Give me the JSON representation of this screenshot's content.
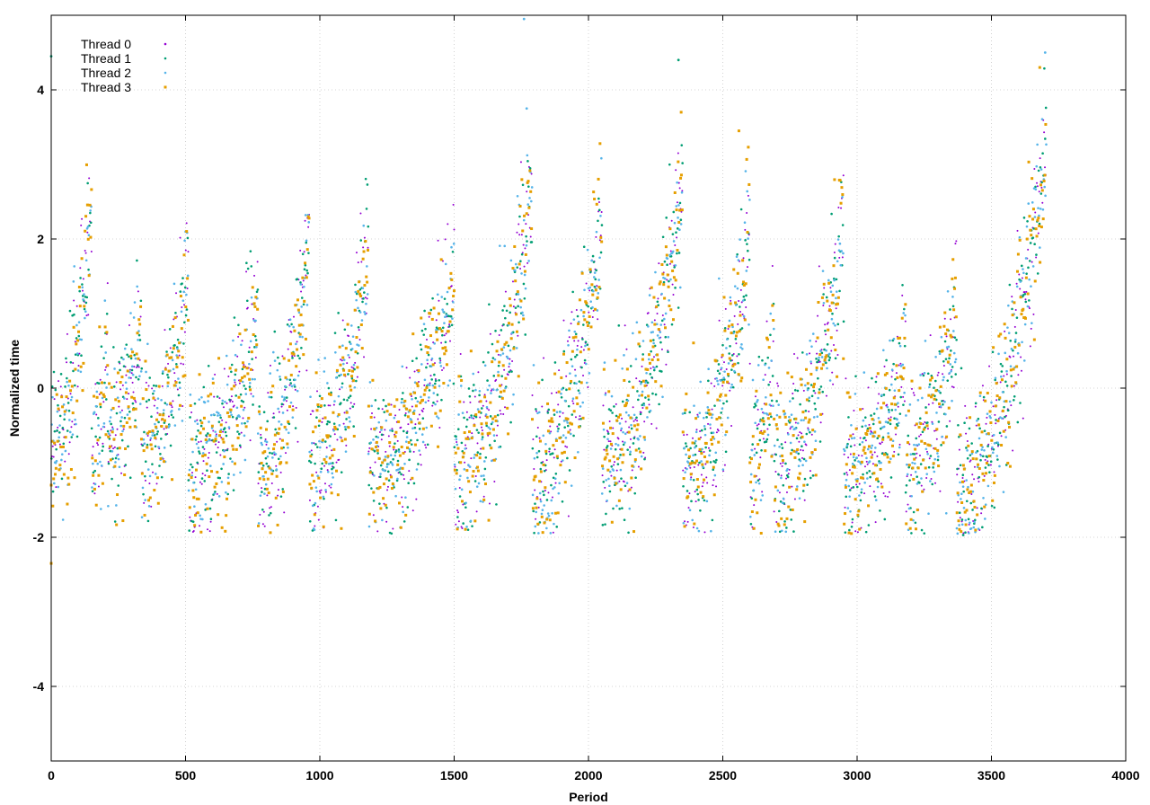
{
  "chart_data": {
    "type": "scatter",
    "title": "",
    "xlabel": "Period",
    "ylabel": "Normalized time",
    "xlim": [
      0,
      4000
    ],
    "ylim": [
      -5,
      5
    ],
    "xticks": [
      0,
      500,
      1000,
      1500,
      2000,
      2500,
      3000,
      3500,
      4000
    ],
    "yticks": [
      -4,
      -2,
      0,
      2,
      4
    ],
    "grid": true,
    "legend_position": "top-left",
    "point_count_per_series": 3705,
    "cycles": [
      {
        "start": 0,
        "end": 150,
        "low": -1.3,
        "peak": 3.2
      },
      {
        "start": 150,
        "end": 210,
        "low": -1.4,
        "peak": 1.5
      },
      {
        "start": 210,
        "end": 335,
        "low": -1.3,
        "peak": 1.6
      },
      {
        "start": 335,
        "end": 510,
        "low": -1.4,
        "peak": 2.4
      },
      {
        "start": 510,
        "end": 770,
        "low": -1.6,
        "peak": 1.8
      },
      {
        "start": 770,
        "end": 960,
        "low": -1.7,
        "peak": 2.8
      },
      {
        "start": 960,
        "end": 1180,
        "low": -1.6,
        "peak": 2.7
      },
      {
        "start": 1180,
        "end": 1500,
        "low": -1.6,
        "peak": 2.2
      },
      {
        "start": 1500,
        "end": 1790,
        "low": -1.6,
        "peak": 3.5
      },
      {
        "start": 1790,
        "end": 2050,
        "low": -1.7,
        "peak": 3.2
      },
      {
        "start": 2050,
        "end": 2350,
        "low": -1.6,
        "peak": 3.6
      },
      {
        "start": 2350,
        "end": 2600,
        "low": -1.7,
        "peak": 3.0
      },
      {
        "start": 2600,
        "end": 2690,
        "low": -1.5,
        "peak": 1.4
      },
      {
        "start": 2690,
        "end": 2950,
        "low": -1.6,
        "peak": 3.0
      },
      {
        "start": 2950,
        "end": 3180,
        "low": -1.7,
        "peak": 1.2
      },
      {
        "start": 3180,
        "end": 3370,
        "low": -1.6,
        "peak": 2.0
      },
      {
        "start": 3370,
        "end": 3705,
        "low": -1.9,
        "peak": 4.4
      }
    ],
    "series": [
      {
        "name": "Thread 0",
        "color": "#9400d3",
        "marker": "small-point"
      },
      {
        "name": "Thread 1",
        "color": "#009e73",
        "marker": "dot"
      },
      {
        "name": "Thread 2",
        "color": "#56b4e9",
        "marker": "dot"
      },
      {
        "name": "Thread 3",
        "color": "#e69f00",
        "marker": "square"
      }
    ],
    "outliers": [
      {
        "x": 1760,
        "y": 4.95,
        "series": "Thread 2"
      },
      {
        "x": 2335,
        "y": 4.4,
        "series": "Thread 1"
      },
      {
        "x": 3700,
        "y": 4.5,
        "series": "Thread 2"
      },
      {
        "x": 3680,
        "y": 4.3,
        "series": "Thread 3"
      },
      {
        "x": 0,
        "y": -2.35,
        "series": "Thread 3"
      },
      {
        "x": 0,
        "y": 4.45,
        "series": "Thread 1"
      },
      {
        "x": 3395,
        "y": -1.97,
        "series": "Thread 1"
      },
      {
        "x": 2560,
        "y": 3.45,
        "series": "Thread 3"
      },
      {
        "x": 2345,
        "y": 3.7,
        "series": "Thread 3"
      },
      {
        "x": 1770,
        "y": 3.75,
        "series": "Thread 2"
      }
    ]
  }
}
